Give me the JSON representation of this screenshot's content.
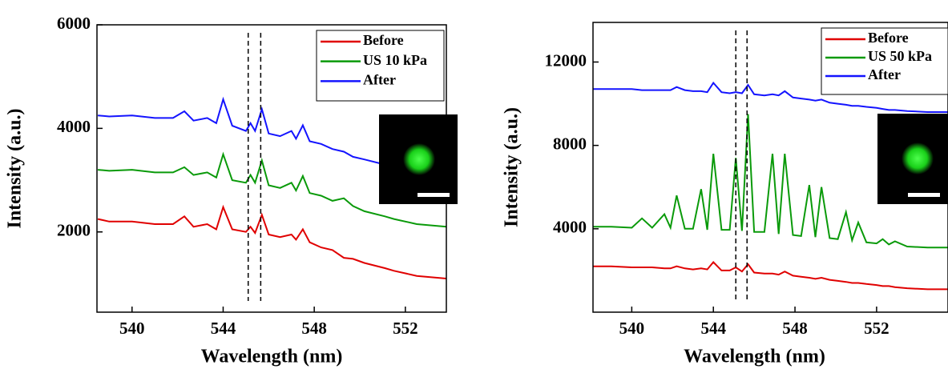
{
  "chart_data": [
    {
      "type": "line",
      "x_label": "Wavelength (nm)",
      "y_label": "Intensity (a.u.)",
      "x": [
        538.5,
        539,
        540,
        541,
        541.8,
        542.3,
        542.7,
        543.3,
        543.7,
        544.0,
        544.4,
        545.0,
        545.2,
        545.4,
        545.7,
        546.0,
        546.5,
        547.0,
        547.2,
        547.5,
        547.8,
        548.3,
        548.8,
        549.3,
        549.7,
        550.2,
        551.1,
        551.5,
        552.5,
        553.8
      ],
      "series": [
        {
          "name": "Before",
          "color": "#e00000",
          "values": [
            2250,
            2200,
            2200,
            2150,
            2150,
            2300,
            2100,
            2150,
            2050,
            2480,
            2050,
            2000,
            2100,
            1980,
            2330,
            1950,
            1900,
            1950,
            1850,
            2050,
            1800,
            1700,
            1650,
            1500,
            1480,
            1400,
            1300,
            1250,
            1150,
            1100
          ]
        },
        {
          "name": "US 10 kPa",
          "color": "#0a9a0a",
          "values": [
            3200,
            3180,
            3200,
            3150,
            3150,
            3250,
            3100,
            3150,
            3050,
            3500,
            3000,
            2950,
            3100,
            2950,
            3380,
            2900,
            2850,
            2950,
            2800,
            3080,
            2750,
            2700,
            2600,
            2650,
            2500,
            2400,
            2300,
            2250,
            2150,
            2100
          ]
        },
        {
          "name": "After",
          "color": "#1414ff",
          "values": [
            4250,
            4230,
            4250,
            4200,
            4200,
            4330,
            4150,
            4200,
            4100,
            4560,
            4050,
            3950,
            4100,
            3950,
            4370,
            3900,
            3850,
            3950,
            3800,
            4060,
            3750,
            3700,
            3600,
            3550,
            3450,
            3400,
            3300,
            3250,
            3150,
            3100
          ]
        }
      ],
      "xlim": [
        538.46,
        553.8
      ],
      "xticks": [
        540,
        544,
        548,
        552
      ],
      "ylim": [
        450,
        6000
      ],
      "yticks": [
        2000,
        4000,
        6000
      ],
      "vlines": [
        545.1,
        545.65
      ],
      "legend": "upper right"
    },
    {
      "type": "line",
      "x_label": "Wavelength (nm)",
      "y_label": "Intensity (a.u.)",
      "x": [
        538.1,
        539,
        540,
        540.5,
        541,
        541.6,
        541.9,
        542.2,
        542.6,
        543.0,
        543.4,
        543.7,
        544.0,
        544.4,
        544.8,
        545.1,
        545.4,
        545.7,
        546.0,
        546.5,
        546.9,
        547.2,
        547.5,
        547.9,
        548.3,
        548.7,
        549.0,
        549.3,
        549.7,
        550.1,
        550.5,
        550.8,
        551.1,
        551.5,
        552.0,
        552.3,
        552.6,
        552.9,
        553.5,
        554.5,
        555.5
      ],
      "series": [
        {
          "name": "Before",
          "color": "#e00000",
          "values": [
            2200,
            2200,
            2150,
            2150,
            2150,
            2100,
            2100,
            2200,
            2100,
            2050,
            2100,
            2050,
            2400,
            2000,
            2000,
            2150,
            1950,
            2300,
            1900,
            1850,
            1850,
            1800,
            1950,
            1750,
            1700,
            1650,
            1600,
            1650,
            1550,
            1500,
            1450,
            1400,
            1400,
            1350,
            1300,
            1250,
            1250,
            1200,
            1150,
            1100,
            1100
          ]
        },
        {
          "name": "US 50 kPa",
          "color": "#0a9a0a",
          "values": [
            4100,
            4100,
            4050,
            4500,
            4050,
            4700,
            4050,
            5600,
            4000,
            4000,
            5900,
            3950,
            7600,
            3950,
            3950,
            7400,
            3900,
            9500,
            3850,
            3850,
            7600,
            3750,
            7600,
            3700,
            3650,
            6100,
            3600,
            6000,
            3550,
            3500,
            4800,
            3450,
            4300,
            3350,
            3300,
            3500,
            3250,
            3400,
            3150,
            3100,
            3100
          ]
        },
        {
          "name": "After",
          "color": "#1414ff",
          "values": [
            10700,
            10700,
            10700,
            10650,
            10650,
            10650,
            10650,
            10800,
            10650,
            10600,
            10600,
            10550,
            11000,
            10550,
            10500,
            10550,
            10500,
            10900,
            10450,
            10400,
            10450,
            10400,
            10600,
            10300,
            10250,
            10200,
            10150,
            10200,
            10050,
            10000,
            9950,
            9900,
            9900,
            9850,
            9800,
            9750,
            9700,
            9700,
            9650,
            9600,
            9600
          ]
        }
      ],
      "xlim": [
        538.1,
        555.5
      ],
      "xticks": [
        540,
        544,
        548,
        552
      ],
      "ylim": [
        0,
        13900
      ],
      "yticks": [
        4000,
        8000,
        12000
      ],
      "vlines": [
        545.1,
        545.65
      ],
      "legend": "upper right"
    }
  ]
}
